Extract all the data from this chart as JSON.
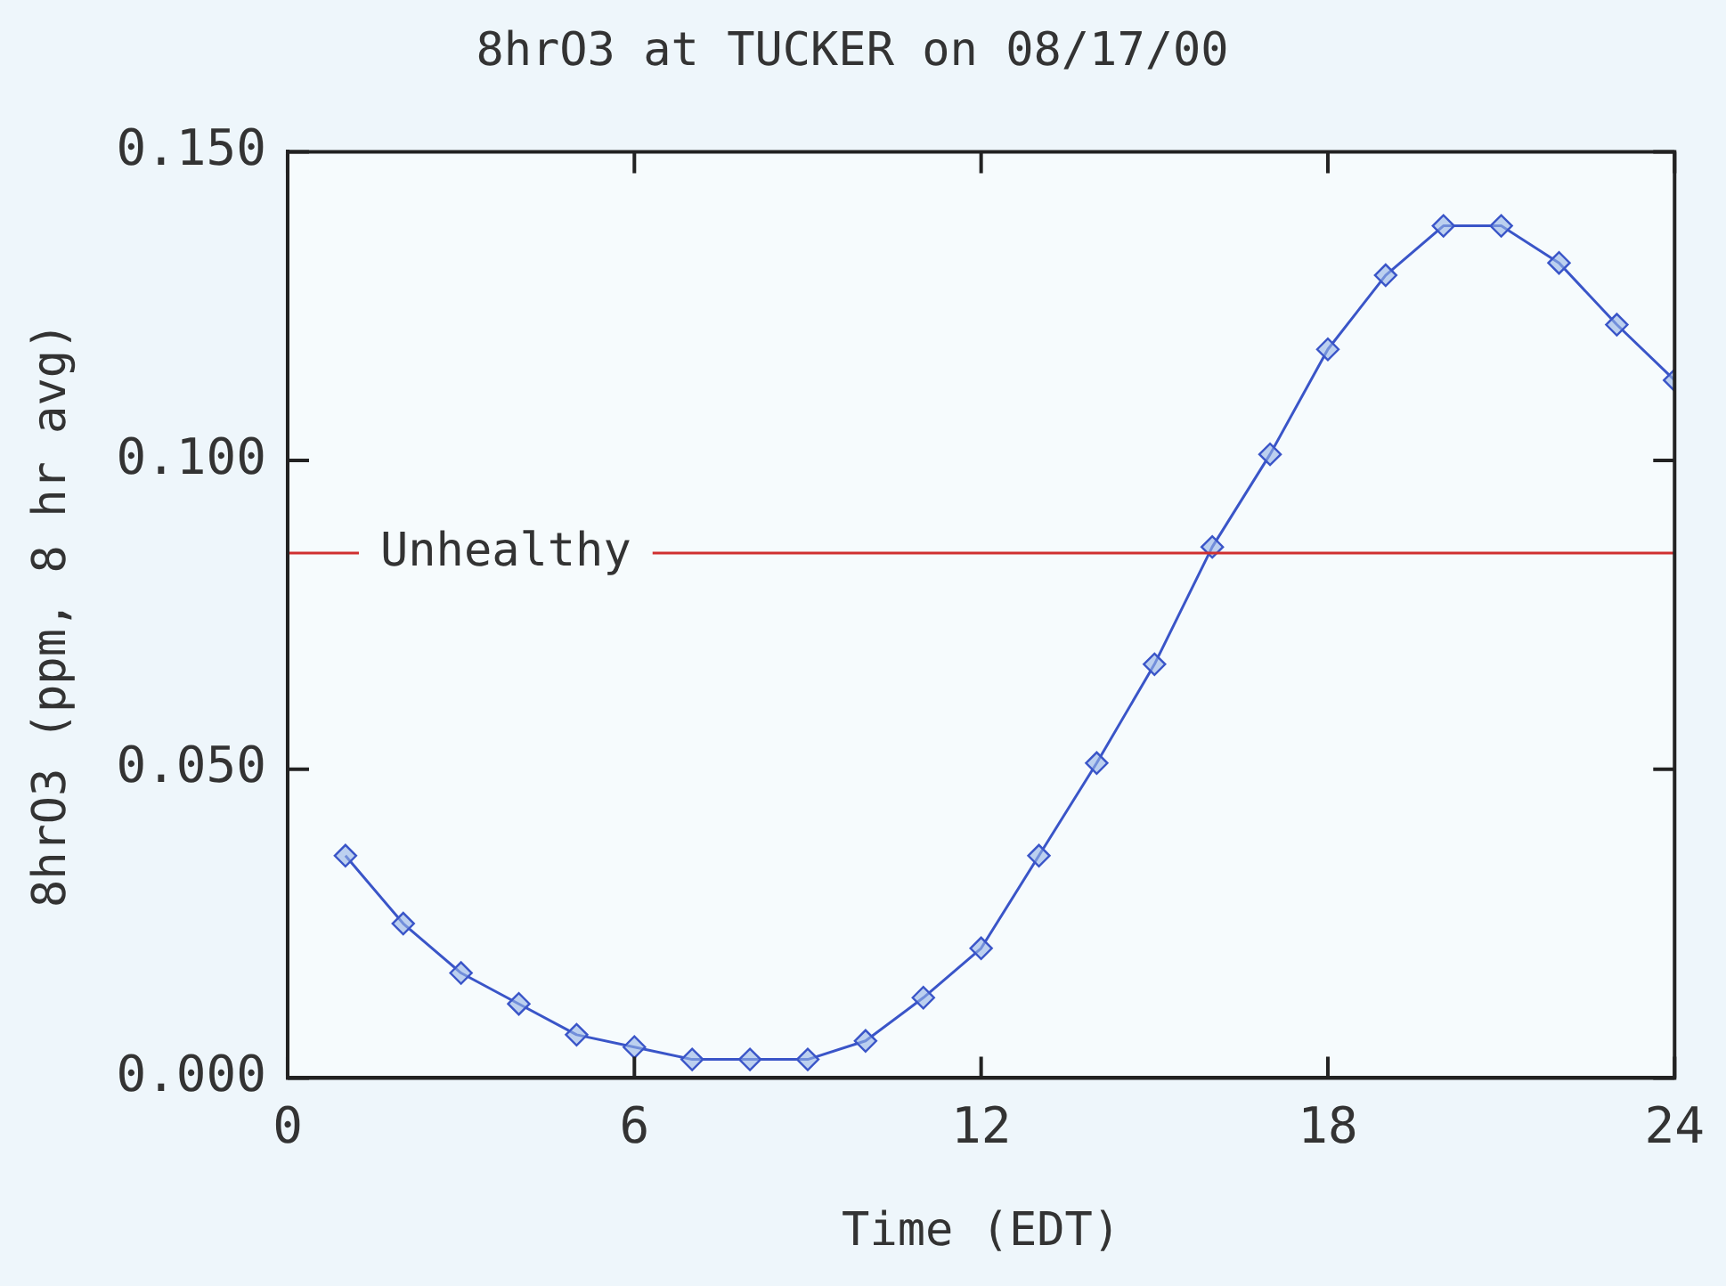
{
  "chart_data": {
    "type": "line",
    "title": "8hrO3 at TUCKER on 08/17/00",
    "xlabel": "Time (EDT)",
    "ylabel": "8hrO3 (ppm, 8 hr avg)",
    "x": [
      1,
      2,
      3,
      4,
      5,
      6,
      7,
      8,
      9,
      10,
      11,
      12,
      13,
      14,
      15,
      16,
      17,
      18,
      19,
      20,
      21,
      22,
      23,
      24
    ],
    "series": [
      {
        "color": "#3a55c8",
        "values": [
          0.036,
          0.025,
          0.017,
          0.012,
          0.007,
          0.005,
          0.003,
          0.003,
          0.003,
          0.006,
          0.013,
          0.021,
          0.036,
          0.051,
          0.067,
          0.086,
          0.101,
          0.118,
          0.13,
          0.138,
          0.138,
          0.132,
          0.122,
          0.113
        ]
      }
    ],
    "xlim": [
      0,
      24
    ],
    "xticks": [
      0,
      6,
      12,
      18,
      24
    ],
    "ylim": [
      0,
      0.15
    ],
    "yticks": [
      {
        "value": 0,
        "label": "0.000"
      },
      {
        "value": 0.05,
        "label": "0.050"
      },
      {
        "value": 0.1,
        "label": "0.100"
      },
      {
        "value": 0.15,
        "label": "0.150"
      }
    ],
    "ref_lines": [
      {
        "axis": "y",
        "value": 0.085,
        "label": "Unhealthy",
        "color": "#d03030"
      }
    ],
    "grid": false,
    "legend": false,
    "marker": "diamond",
    "line_style": "solid"
  }
}
